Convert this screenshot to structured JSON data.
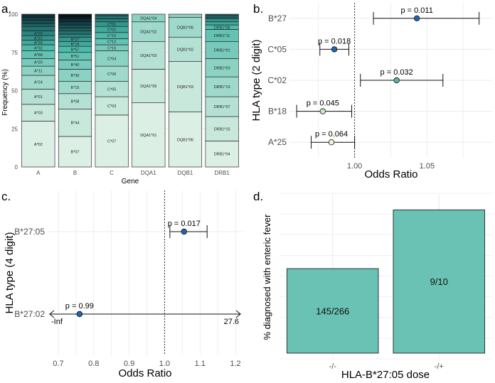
{
  "colors": {
    "panel_bg": "#ffffff",
    "grid": "#ebebeb",
    "axis_text": "#4d4d4d",
    "bar_fill": "#69c2b3",
    "point_blue": "#2166ac",
    "point_teal": "#5ab4ac",
    "point_lightgreen": "#c7e9c0",
    "point_pale": "#f1f1dd",
    "stack_palette": [
      "#dcefe5",
      "#c8e8dc",
      "#b4e1d4",
      "#9fd9cb",
      "#8bd2c3",
      "#77cabb",
      "#63c2b2",
      "#4fb9a9",
      "#41a89b",
      "#35968d",
      "#2b847f",
      "#247270",
      "#1e6162",
      "#185054",
      "#133f46",
      "#0e2f38",
      "#0a202a",
      "#061419"
    ]
  },
  "chart_data": [
    {
      "panel": "a.",
      "type": "bar",
      "stacked": true,
      "xlabel": "Gene",
      "ylabel": "Frequency (%)",
      "ylim": [
        0,
        100
      ],
      "yticks": [
        0,
        25,
        50,
        75,
        100
      ],
      "categories": [
        "A",
        "B",
        "C",
        "DQA1",
        "DQB1",
        "DRB1"
      ],
      "stacks": [
        {
          "category": "A",
          "segments": [
            {
              "label": "A*02",
              "value": 30
            },
            {
              "label": "A*03",
              "value": 11
            },
            {
              "label": "A*01",
              "value": 10
            },
            {
              "label": "A*24",
              "value": 9
            },
            {
              "label": "A*11",
              "value": 6
            },
            {
              "label": "A*25",
              "value": 5
            },
            {
              "label": "A*68",
              "value": 5
            },
            {
              "label": "A*32",
              "value": 4
            },
            {
              "label": "A*26",
              "value": 3
            },
            {
              "label": "A*31",
              "value": 3
            },
            {
              "label": "A*29",
              "value": 3
            },
            {
              "label": "",
              "value": 3
            },
            {
              "label": "",
              "value": 2
            },
            {
              "label": "",
              "value": 2
            },
            {
              "label": "",
              "value": 2
            },
            {
              "label": "",
              "value": 2
            }
          ]
        },
        {
          "category": "B",
          "segments": [
            {
              "label": "B*07",
              "value": 20
            },
            {
              "label": "B*44",
              "value": 18
            },
            {
              "label": "B*08",
              "value": 10
            },
            {
              "label": "B*15",
              "value": 8
            },
            {
              "label": "B*35",
              "value": 8
            },
            {
              "label": "B*40",
              "value": 6
            },
            {
              "label": "B*51",
              "value": 5
            },
            {
              "label": "B*57",
              "value": 4
            },
            {
              "label": "B*18",
              "value": 3
            },
            {
              "label": "B*27",
              "value": 3
            },
            {
              "label": "",
              "value": 2
            },
            {
              "label": "",
              "value": 2
            },
            {
              "label": "",
              "value": 2
            },
            {
              "label": "",
              "value": 2
            },
            {
              "label": "",
              "value": 2
            },
            {
              "label": "",
              "value": 2
            },
            {
              "label": "",
              "value": 1
            },
            {
              "label": "",
              "value": 1
            },
            {
              "label": "",
              "value": 1
            }
          ]
        },
        {
          "category": "C",
          "segments": [
            {
              "label": "C*07",
              "value": 34
            },
            {
              "label": "C*03",
              "value": 12
            },
            {
              "label": "C*05",
              "value": 10
            },
            {
              "label": "C*06",
              "value": 10
            },
            {
              "label": "C*04",
              "value": 10
            },
            {
              "label": "C*16",
              "value": 4
            },
            {
              "label": "C*12",
              "value": 4
            },
            {
              "label": "C*15",
              "value": 4
            },
            {
              "label": "C*02",
              "value": 4
            },
            {
              "label": "C*01",
              "value": 3
            },
            {
              "label": "",
              "value": 2
            },
            {
              "label": "",
              "value": 2
            },
            {
              "label": "",
              "value": 1
            }
          ]
        },
        {
          "category": "DQA1",
          "segments": [
            {
              "label": "DQA1*01",
              "value": 42
            },
            {
              "label": "DQA1*05",
              "value": 22
            },
            {
              "label": "DQA1*03",
              "value": 18
            },
            {
              "label": "DQA1*02",
              "value": 13
            },
            {
              "label": "DQA1*04",
              "value": 5
            }
          ]
        },
        {
          "category": "DQB1",
          "segments": [
            {
              "label": "DQB1*06",
              "value": 36
            },
            {
              "label": "DQB1*03",
              "value": 33
            },
            {
              "label": "DQB1*02",
              "value": 16
            },
            {
              "label": "DQB1*05",
              "value": 13
            },
            {
              "label": "DQB1*04",
              "value": 2
            }
          ]
        },
        {
          "category": "DRB1",
          "segments": [
            {
              "label": "DRB1*04",
              "value": 17
            },
            {
              "label": "DRB1*15",
              "value": 16
            },
            {
              "label": "DRB1*07",
              "value": 13
            },
            {
              "label": "DRB1*13",
              "value": 13
            },
            {
              "label": "DRB1*03",
              "value": 12
            },
            {
              "label": "DRB1*01",
              "value": 11
            },
            {
              "label": "DRB1*11",
              "value": 8
            },
            {
              "label": "DRB1*08",
              "value": 3
            },
            {
              "label": "",
              "value": 2
            },
            {
              "label": "",
              "value": 2
            },
            {
              "label": "",
              "value": 1
            },
            {
              "label": "",
              "value": 1
            },
            {
              "label": "",
              "value": 1
            }
          ]
        }
      ]
    },
    {
      "panel": "b.",
      "type": "scatter",
      "subtype": "forest",
      "xlabel": "Odds Ratio",
      "ylabel": "HLA type (2 digit)",
      "xlim": [
        0.955,
        1.095
      ],
      "xticks": [
        1.0,
        1.05
      ],
      "xtick_labels": [
        "1.00",
        "1.05"
      ],
      "reference_line": 1.0,
      "rows": [
        {
          "label": "B*27",
          "or": 1.043,
          "lo": 1.013,
          "hi": 1.086,
          "p": "p = 0.011",
          "color": "#2166ac"
        },
        {
          "label": "C*05",
          "or": 0.986,
          "lo": 0.976,
          "hi": 0.996,
          "p": "p = 0.018",
          "color": "#2166ac"
        },
        {
          "label": "C*02",
          "or": 1.029,
          "lo": 1.004,
          "hi": 1.061,
          "p": "p = 0.032",
          "color": "#5ab4ac"
        },
        {
          "label": "B*18",
          "or": 0.978,
          "lo": 0.96,
          "hi": 0.998,
          "p": "p = 0.045",
          "color": "#c7e9c0"
        },
        {
          "label": "A*25",
          "or": 0.984,
          "lo": 0.97,
          "hi": 1.0,
          "p": "p = 0.064",
          "color": "#f1f1dd"
        }
      ]
    },
    {
      "panel": "c.",
      "type": "scatter",
      "subtype": "forest",
      "xlabel": "Odds Ratio",
      "ylabel": "HLA type (4 digit)",
      "xlim": [
        0.67,
        1.22
      ],
      "xticks": [
        0.7,
        0.8,
        0.9,
        1.0,
        1.1,
        1.2
      ],
      "xtick_labels": [
        "0.7",
        "0.8",
        "0.9",
        "1.0",
        "1.1",
        "1.2"
      ],
      "reference_line": 1.0,
      "rows": [
        {
          "label": "B*27:05",
          "or": 1.055,
          "lo": 1.015,
          "hi": 1.12,
          "p": "p = 0.017",
          "color": "#2166ac"
        },
        {
          "label": "B*27:02",
          "or": 0.76,
          "lo": -1,
          "hi": 27.6,
          "p": "p = 0.99",
          "color": "#2166ac",
          "lo_text": "-Inf",
          "hi_text": "27.6"
        }
      ]
    },
    {
      "panel": "d.",
      "type": "bar",
      "xlabel": "HLA-B*27:05 dose",
      "ylabel": "% diagnosed with enteric fever",
      "ylim": [
        0,
        100
      ],
      "categories": [
        "-/-",
        "-/+"
      ],
      "values": [
        54.5,
        90.0
      ],
      "labels": [
        "145/266",
        "9/10"
      ]
    }
  ]
}
